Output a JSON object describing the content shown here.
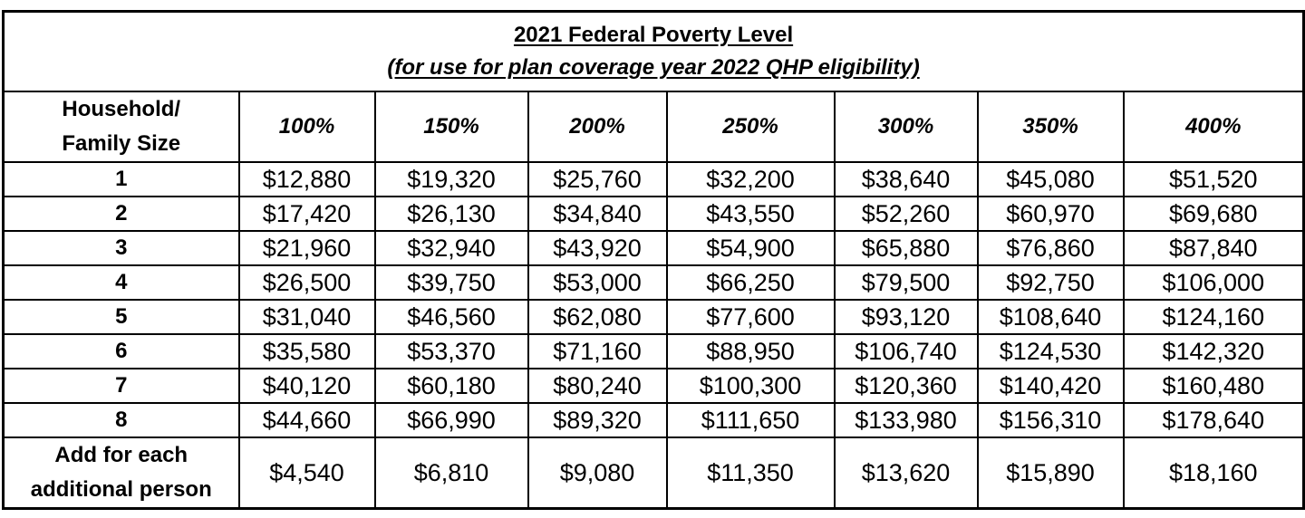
{
  "title": "2021 Federal Poverty Level",
  "subtitle": "(for use for plan coverage year 2022 QHP eligibility)",
  "header": {
    "size_label_line1": "Household/",
    "size_label_line2": "Family Size",
    "percents": [
      "100%",
      "150%",
      "200%",
      "250%",
      "300%",
      "350%",
      "400%"
    ]
  },
  "rows": [
    {
      "size": "1",
      "values": [
        "$12,880",
        "$19,320",
        "$25,760",
        "$32,200",
        "$38,640",
        "$45,080",
        "$51,520"
      ]
    },
    {
      "size": "2",
      "values": [
        "$17,420",
        "$26,130",
        "$34,840",
        "$43,550",
        "$52,260",
        "$60,970",
        "$69,680"
      ]
    },
    {
      "size": "3",
      "values": [
        "$21,960",
        "$32,940",
        "$43,920",
        "$54,900",
        "$65,880",
        "$76,860",
        "$87,840"
      ]
    },
    {
      "size": "4",
      "values": [
        "$26,500",
        "$39,750",
        "$53,000",
        "$66,250",
        "$79,500",
        "$92,750",
        "$106,000"
      ]
    },
    {
      "size": "5",
      "values": [
        "$31,040",
        "$46,560",
        "$62,080",
        "$77,600",
        "$93,120",
        "$108,640",
        "$124,160"
      ]
    },
    {
      "size": "6",
      "values": [
        "$35,580",
        "$53,370",
        "$71,160",
        "$88,950",
        "$106,740",
        "$124,530",
        "$142,320"
      ]
    },
    {
      "size": "7",
      "values": [
        "$40,120",
        "$60,180",
        "$80,240",
        "$100,300",
        "$120,360",
        "$140,420",
        "$160,480"
      ]
    },
    {
      "size": "8",
      "values": [
        "$44,660",
        "$66,990",
        "$89,320",
        "$111,650",
        "$133,980",
        "$156,310",
        "$178,640"
      ]
    }
  ],
  "additional": {
    "label_line1": "Add for each",
    "label_line2": "additional person",
    "values": [
      "$4,540",
      "$6,810",
      "$9,080",
      "$11,350",
      "$13,620",
      "$15,890",
      "$18,160"
    ]
  }
}
